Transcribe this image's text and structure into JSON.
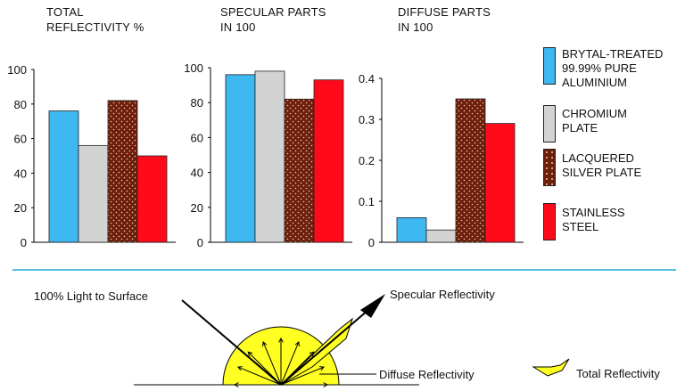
{
  "colors": {
    "blue": "#3db8f0",
    "grey": "#d3d3d3",
    "brown": "#6e1f0c",
    "red": "#ff0a1a",
    "divider": "#55bde0",
    "beam": "#ffff22"
  },
  "chart_data": [
    {
      "type": "bar",
      "title": "TOTAL\nREFLECTIVITY %",
      "categories": [
        "BRYTAL-TREATED 99.99% PURE ALUMINIUM",
        "CHROMIUM PLATE",
        "LACQUERED SILVER PLATE",
        "STAINLESS STEEL"
      ],
      "values": [
        76,
        56,
        82,
        50
      ],
      "ylim": [
        0,
        100
      ],
      "yticks": [
        "0",
        "20",
        "40",
        "60",
        "80",
        "100"
      ],
      "ytick_values": [
        0,
        20,
        40,
        60,
        80,
        100
      ]
    },
    {
      "type": "bar",
      "title": "SPECULAR PARTS\nIN 100",
      "categories": [
        "BRYTAL-TREATED 99.99% PURE ALUMINIUM",
        "CHROMIUM PLATE",
        "LACQUERED SILVER PLATE",
        "STAINLESS STEEL"
      ],
      "values": [
        96,
        98,
        82,
        93
      ],
      "ylim": [
        0,
        100
      ],
      "yticks": [
        "0",
        "20",
        "40",
        "60",
        "80",
        "100"
      ],
      "ytick_values": [
        0,
        20,
        40,
        60,
        80,
        100
      ]
    },
    {
      "type": "bar",
      "title": "DIFFUSE PARTS\nIN 100",
      "categories": [
        "BRYTAL-TREATED 99.99% PURE ALUMINIUM",
        "CHROMIUM PLATE",
        "LACQUERED SILVER PLATE",
        "STAINLESS STEEL"
      ],
      "values": [
        0.06,
        0.03,
        0.35,
        0.29
      ],
      "ylim": [
        0,
        0.4
      ],
      "yticks": [
        "0",
        "0.1",
        "0.2",
        "0.3",
        "0.4"
      ],
      "ytick_values": [
        0,
        0.1,
        0.2,
        0.3,
        0.4
      ]
    }
  ],
  "legend": [
    {
      "label": "BRYTAL-TREATED\n99.99% PURE\nALUMINIUM",
      "color": "blue"
    },
    {
      "label": "CHROMIUM\nPLATE",
      "color": "grey"
    },
    {
      "label": "LACQUERED\nSILVER PLATE",
      "color": "brown"
    },
    {
      "label": "STAINLESS\nSTEEL",
      "color": "red"
    }
  ],
  "diagram": {
    "incident_label": "100% Light to Surface",
    "specular_label": "Specular Reflectivity",
    "diffuse_label": "Diffuse Reflectivity",
    "total_label": "Total Reflectivity"
  }
}
